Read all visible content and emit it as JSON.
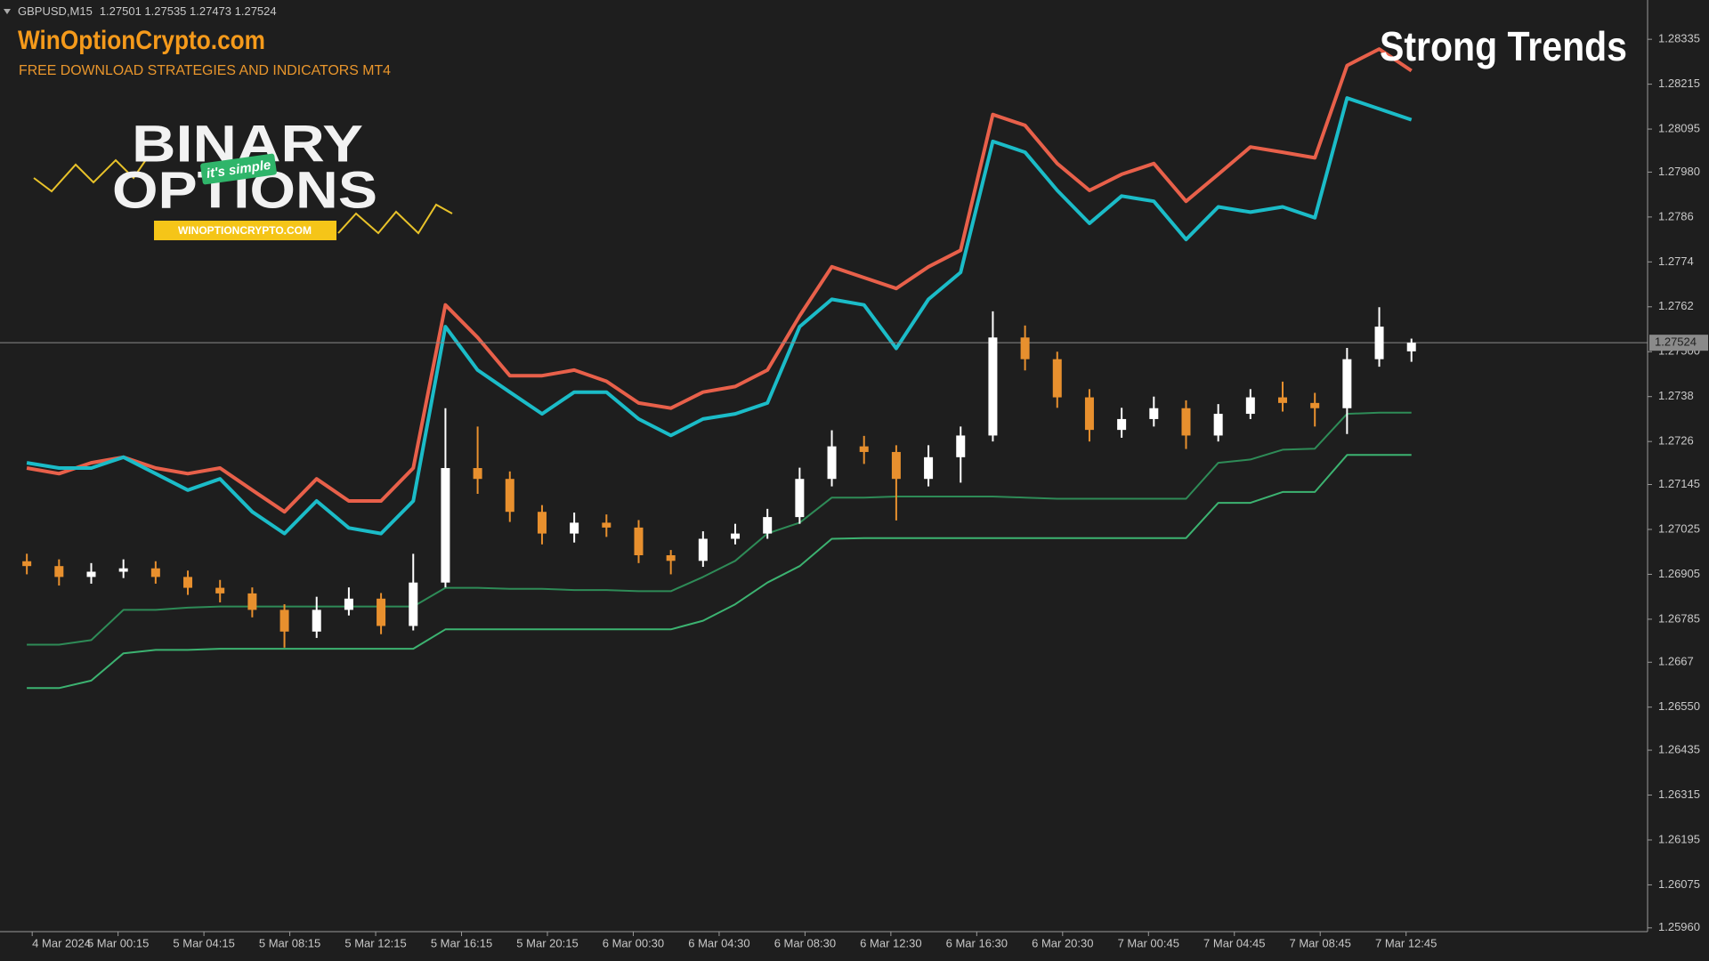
{
  "chart_data": {
    "type": "candlestick",
    "title": "GBPUSD,M15",
    "subtitle": "1.27501 1.27535 1.27473 1.27524",
    "annotation": "Strong Trends",
    "x": [
      5,
      11,
      17,
      23,
      29,
      35,
      41,
      47,
      53,
      59,
      65,
      71,
      77,
      83,
      89,
      95,
      101,
      107,
      113,
      119,
      125,
      131,
      137,
      143,
      149,
      155,
      161,
      167,
      173,
      179,
      185,
      191,
      197,
      203,
      209,
      215,
      221,
      227,
      233,
      239,
      245,
      251,
      257,
      263
    ],
    "open": [
      1.2694,
      1.26927,
      1.26898,
      1.26912,
      1.26921,
      1.26898,
      1.26869,
      1.26854,
      1.2681,
      1.26752,
      1.2681,
      1.2684,
      1.26767,
      1.26883,
      1.27189,
      1.2716,
      1.27072,
      1.27014,
      1.27043,
      1.2703,
      1.26956,
      1.26941,
      1.27,
      1.27014,
      1.27058,
      1.2716,
      1.27247,
      1.27232,
      1.2716,
      1.27218,
      1.27276,
      1.27538,
      1.2748,
      1.27378,
      1.27291,
      1.2732,
      1.27349,
      1.27276,
      1.27334,
      1.27378,
      1.27363,
      1.27349,
      1.2748,
      1.27501
    ],
    "high": [
      1.2696,
      1.26945,
      1.26935,
      1.26945,
      1.2694,
      1.26915,
      1.2689,
      1.2687,
      1.26825,
      1.26845,
      1.2687,
      1.26855,
      1.2696,
      1.27349,
      1.273,
      1.2718,
      1.2709,
      1.2707,
      1.27065,
      1.2705,
      1.2697,
      1.2702,
      1.2704,
      1.2708,
      1.2719,
      1.2729,
      1.27275,
      1.2725,
      1.2725,
      1.273,
      1.27608,
      1.2757,
      1.275,
      1.274,
      1.2735,
      1.2738,
      1.2737,
      1.2736,
      1.274,
      1.2742,
      1.2739,
      1.2751,
      1.27619,
      1.27535
    ],
    "low": [
      1.26905,
      1.26875,
      1.2688,
      1.26895,
      1.2688,
      1.2685,
      1.2683,
      1.2679,
      1.26709,
      1.26735,
      1.26795,
      1.26745,
      1.26755,
      1.2687,
      1.2712,
      1.27045,
      1.26985,
      1.2699,
      1.27005,
      1.26935,
      1.26905,
      1.26925,
      1.26985,
      1.27,
      1.2704,
      1.2714,
      1.272,
      1.27049,
      1.2714,
      1.2715,
      1.2726,
      1.2745,
      1.2735,
      1.2726,
      1.2727,
      1.273,
      1.2724,
      1.2726,
      1.2732,
      1.2734,
      1.273,
      1.2728,
      1.2746,
      1.27473
    ],
    "close": [
      1.26927,
      1.26898,
      1.26912,
      1.26921,
      1.26898,
      1.26869,
      1.26854,
      1.2681,
      1.26752,
      1.2681,
      1.2684,
      1.26767,
      1.26883,
      1.27189,
      1.2716,
      1.27072,
      1.27014,
      1.27043,
      1.2703,
      1.26956,
      1.26941,
      1.27,
      1.27014,
      1.27058,
      1.2716,
      1.27247,
      1.27232,
      1.2716,
      1.27218,
      1.27276,
      1.27538,
      1.2748,
      1.27378,
      1.27291,
      1.2732,
      1.27349,
      1.27276,
      1.27334,
      1.27378,
      1.27363,
      1.27349,
      1.2748,
      1.27567,
      1.27524
    ],
    "up_color": "#ffffff",
    "down_color": "#e8902e",
    "series": [
      {
        "color": "#e8604a",
        "values": [
          1.27189,
          1.27174,
          1.27203,
          1.27218,
          1.27189,
          1.27174,
          1.27189,
          1.2713,
          1.27072,
          1.2716,
          1.27101,
          1.27101,
          1.27189,
          1.27625,
          1.27538,
          1.27436,
          1.27436,
          1.27451,
          1.27421,
          1.27363,
          1.27349,
          1.27392,
          1.27407,
          1.27451,
          1.27596,
          1.27727,
          1.27698,
          1.27669,
          1.27727,
          1.27771,
          1.28134,
          1.28105,
          1.28003,
          1.27931,
          1.27974,
          1.28003,
          1.27902,
          1.27974,
          1.28047,
          1.28033,
          1.28018,
          1.28265,
          1.28309,
          1.28251
        ]
      },
      {
        "color": "#1bbcc8",
        "values": [
          1.27203,
          1.27189,
          1.27189,
          1.27218,
          1.27174,
          1.2713,
          1.2716,
          1.27072,
          1.27014,
          1.27101,
          1.27029,
          1.27014,
          1.27101,
          1.27567,
          1.27451,
          1.27392,
          1.27334,
          1.27392,
          1.27392,
          1.2732,
          1.27276,
          1.2732,
          1.27334,
          1.27363,
          1.27567,
          1.2764,
          1.27625,
          1.27509,
          1.2764,
          1.27712,
          1.28062,
          1.28033,
          1.27931,
          1.27843,
          1.27916,
          1.27902,
          1.278,
          1.27887,
          1.27873,
          1.27887,
          1.27858,
          1.28178,
          1.28149,
          1.2812
        ]
      },
      {
        "color": "#2e8b57",
        "values": [
          1.26717,
          1.26717,
          1.26729,
          1.2681,
          1.2681,
          1.26816,
          1.26819,
          1.26819,
          1.26819,
          1.26819,
          1.26819,
          1.26819,
          1.26819,
          1.26869,
          1.26869,
          1.26866,
          1.26866,
          1.26863,
          1.26863,
          1.2686,
          1.2686,
          1.26898,
          1.26941,
          1.27014,
          1.27043,
          1.2711,
          1.2711,
          1.27113,
          1.27113,
          1.27113,
          1.27113,
          1.2711,
          1.27107,
          1.27107,
          1.27107,
          1.27107,
          1.27107,
          1.27203,
          1.27212,
          1.27238,
          1.27241,
          1.27334,
          1.27337,
          1.27337
        ]
      },
      {
        "color": "#3cb371",
        "values": [
          1.26601,
          1.26601,
          1.26621,
          1.26694,
          1.26703,
          1.26703,
          1.26706,
          1.26706,
          1.26706,
          1.26706,
          1.26706,
          1.26706,
          1.26706,
          1.26758,
          1.26758,
          1.26758,
          1.26758,
          1.26758,
          1.26758,
          1.26758,
          1.26758,
          1.26781,
          1.26825,
          1.26883,
          1.26927,
          1.27,
          1.27002,
          1.27002,
          1.27002,
          1.27002,
          1.27002,
          1.27002,
          1.27002,
          1.27002,
          1.27002,
          1.27002,
          1.27002,
          1.27096,
          1.27096,
          1.27125,
          1.27125,
          1.27224,
          1.27224,
          1.27224
        ]
      }
    ],
    "current_price": 1.27524,
    "xlim": [
      0,
      307
    ],
    "ylim": [
      1.2595,
      1.2844
    ],
    "yticks": [
      1.28335,
      1.28215,
      1.28095,
      {
        "value": 1.2798,
        "label": "1.27980"
      },
      1.2786,
      1.2774,
      1.2762,
      {
        "value": 1.275,
        "label": "1.27500"
      },
      1.2738,
      1.2726,
      1.27145,
      1.27025,
      1.26905,
      1.26785,
      1.2667,
      {
        "value": 1.2655,
        "label": "1.26550"
      },
      1.26435,
      1.26315,
      1.26195,
      1.26075,
      {
        "value": 1.2596,
        "label": "1.25960"
      }
    ],
    "xticks": [
      {
        "value": 6,
        "label": "4 Mar 2024"
      },
      {
        "value": 22,
        "label": "5 Mar 00:15"
      },
      {
        "value": 38,
        "label": "5 Mar 04:15"
      },
      {
        "value": 54,
        "label": "5 Mar 08:15"
      },
      {
        "value": 70,
        "label": "5 Mar 12:15"
      },
      {
        "value": 86,
        "label": "5 Mar 16:15"
      },
      {
        "value": 102,
        "label": "5 Mar 20:15"
      },
      {
        "value": 118,
        "label": "6 Mar 00:30"
      },
      {
        "value": 134,
        "label": "6 Mar 04:30"
      },
      {
        "value": 150,
        "label": "6 Mar 08:30"
      },
      {
        "value": 166,
        "label": "6 Mar 12:30"
      },
      {
        "value": 182,
        "label": "6 Mar 16:30"
      },
      {
        "value": 198,
        "label": "6 Mar 20:30"
      },
      {
        "value": 214,
        "label": "7 Mar 00:45"
      },
      {
        "value": 230,
        "label": "7 Mar 04:45"
      },
      {
        "value": 246,
        "label": "7 Mar 08:45"
      },
      {
        "value": 262,
        "label": "7 Mar 12:45"
      }
    ]
  },
  "branding": {
    "site": "WinOptionCrypto.com",
    "tagline": "FREE DOWNLOAD STRATEGIES AND INDICATORS MT4",
    "logo_top": "BINARY",
    "logo_badge": "it's simple",
    "logo_bottom": "OPTIONS",
    "logo_url": "WINOPTIONCRYPTO.COM"
  }
}
